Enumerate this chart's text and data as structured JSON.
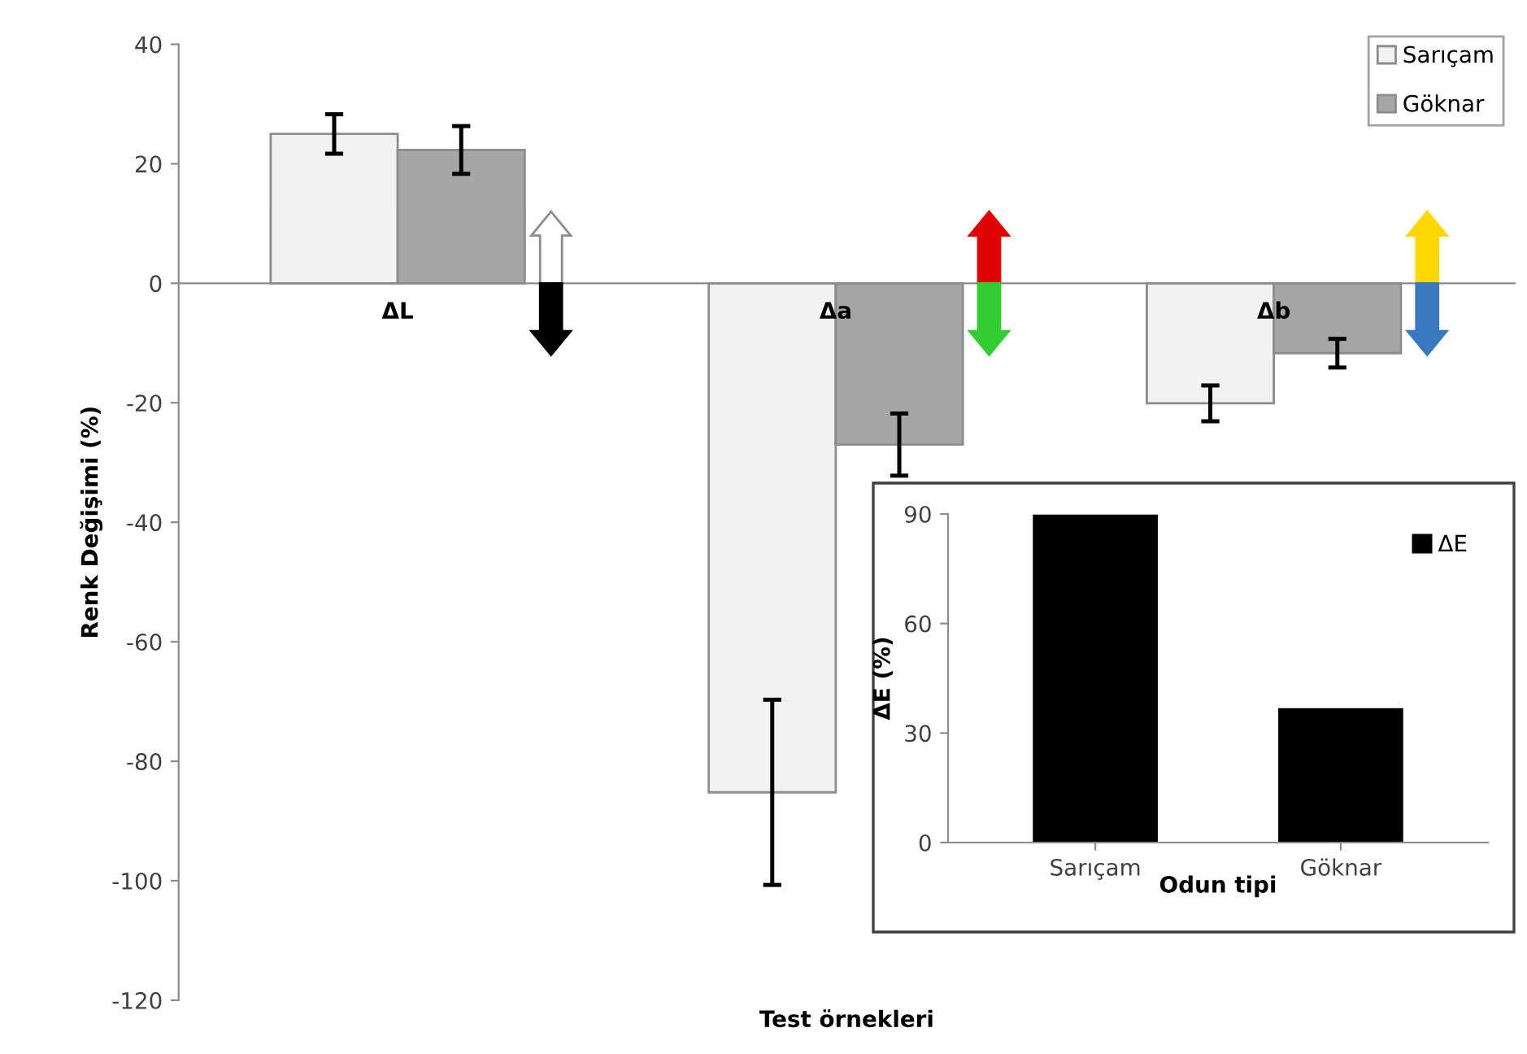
{
  "chart_data": [
    {
      "type": "bar",
      "categories": [
        "ΔL",
        "Δa",
        "Δb"
      ],
      "xlabel": "Test örnekleri",
      "ylabel": "Renk Değişimi (%)",
      "ylim": [
        -120,
        40
      ],
      "yticks": [
        -120,
        -100,
        -80,
        -60,
        -40,
        -20,
        0,
        20,
        40
      ],
      "grid": false,
      "legend": "top right",
      "series": [
        {
          "name": "Sarıçam",
          "color": "#f2f2f2",
          "values": [
            25.0,
            -85.2,
            -20.1
          ],
          "errors": [
            3.3,
            15.5,
            3.0
          ]
        },
        {
          "name": "Göknar",
          "color": "#a6a6a6",
          "values": [
            22.3,
            -27.0,
            -11.7
          ],
          "errors": [
            4.0,
            5.2,
            2.4
          ]
        }
      ]
    },
    {
      "type": "bar",
      "categories": [
        "Sarıçam",
        "Göknar"
      ],
      "xlabel": "Odun tipi",
      "ylabel": "ΔE (%)",
      "ylim": [
        0,
        90
      ],
      "yticks": [
        0,
        30,
        60,
        90
      ],
      "grid": false,
      "legend": "top right",
      "series": [
        {
          "name": "ΔE",
          "color": "#000000",
          "values": [
            89.5,
            36.5
          ]
        }
      ]
    }
  ]
}
